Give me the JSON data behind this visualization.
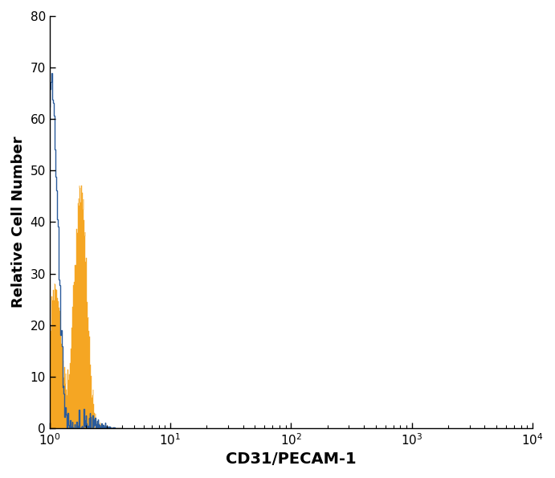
{
  "xlabel": "CD31/PECAM-1",
  "ylabel": "Relative Cell Number",
  "ylim": [
    0,
    80
  ],
  "yticks": [
    0,
    10,
    20,
    30,
    40,
    50,
    60,
    70,
    80
  ],
  "blue_color": "#2a5b9b",
  "orange_color": "#f5a623",
  "background_color": "#ffffff",
  "xlabel_fontsize": 14,
  "ylabel_fontsize": 13,
  "tick_fontsize": 11,
  "blue_peak_log": 1.02,
  "blue_sigma": 0.12,
  "orange_peak_log": 1.82,
  "orange_sigma": 0.22,
  "orange_sec_peak_log": 1.12,
  "orange_sec_sigma": 0.12
}
